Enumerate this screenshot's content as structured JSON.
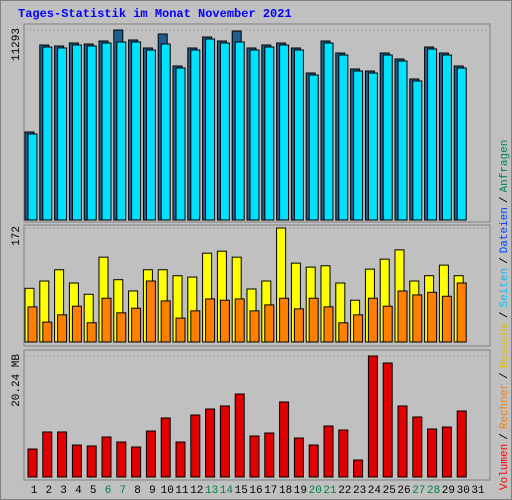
{
  "chart_data": {
    "type": "bar",
    "title": "Tages-Statistik im Monat November 2021",
    "categories": [
      "1",
      "2",
      "3",
      "4",
      "5",
      "6",
      "7",
      "8",
      "9",
      "10",
      "11",
      "12",
      "13",
      "14",
      "15",
      "16",
      "17",
      "18",
      "19",
      "20",
      "21",
      "22",
      "23",
      "24",
      "25",
      "26",
      "27",
      "28",
      "29",
      "30",
      "31"
    ],
    "category_colors": [
      "#000000",
      "#000000",
      "#000000",
      "#000000",
      "#000000",
      "#008040",
      "#008040",
      "#000000",
      "#000000",
      "#000000",
      "#000000",
      "#000000",
      "#008040",
      "#008040",
      "#000000",
      "#000000",
      "#000000",
      "#000000",
      "#000000",
      "#008040",
      "#008040",
      "#000000",
      "#000000",
      "#000000",
      "#000000",
      "#000000",
      "#008040",
      "#008040",
      "#000000",
      "#000000",
      "#000000"
    ],
    "legend_separator": "/",
    "legend": [
      {
        "label": "Volumen",
        "color": "#ff0000"
      },
      {
        "label": "Rechner",
        "color": "#ff8000"
      },
      {
        "label": "Besuche",
        "color": "#e0c000"
      },
      {
        "label": "Seiten",
        "color": "#00c0ff"
      },
      {
        "label": "Dateien",
        "color": "#0040ff"
      },
      {
        "label": "Anfragen",
        "color": "#008060"
      }
    ],
    "panels": [
      {
        "ylim": [
          0,
          11293
        ],
        "yticks": [
          11293
        ],
        "series": [
          {
            "name": "Anfragen",
            "color": "#1f5f8f",
            "values": [
              5231,
              10401,
              10342,
              10520,
              10461,
              10639,
              11293,
              10699,
              10223,
              11055,
              9153,
              10223,
              10877,
              10639,
              11233,
              10223,
              10401,
              10520,
              10223,
              8737,
              10639,
              9926,
              8975,
              8856,
              9926,
              9569,
              8381,
              10283,
              9926,
              9153,
              null
            ]
          },
          {
            "name": "Dateien",
            "color": "#00e0ff",
            "values": [
              5112,
              10282,
              10223,
              10401,
              10342,
              10520,
              10580,
              10580,
              10104,
              10461,
              9034,
              10104,
              10758,
              10520,
              10580,
              10104,
              10282,
              10401,
              10104,
              8618,
              10520,
              9807,
              8856,
              8737,
              9807,
              9450,
              8262,
              10164,
              9807,
              9034,
              null
            ]
          }
        ]
      },
      {
        "ylim": [
          0,
          172
        ],
        "yticks": [
          172
        ],
        "series": [
          {
            "name": "Besuche",
            "color": "#ffff00",
            "values": [
              81,
              92,
              109,
              89,
              72,
              128,
              94,
              77,
              109,
              109,
              100,
              98,
              134,
              137,
              128,
              80,
              92,
              172,
              119,
              113,
              115,
              89,
              63,
              110,
              125,
              139,
              92,
              100,
              116,
              100,
              null
            ]
          },
          {
            "name": "Rechner",
            "color": "#ff8000",
            "values": [
              53,
              30,
              41,
              54,
              29,
              66,
              44,
              51,
              92,
              62,
              36,
              47,
              65,
              63,
              65,
              47,
              56,
              66,
              50,
              66,
              53,
              29,
              41,
              66,
              54,
              77,
              71,
              75,
              69,
              89,
              null
            ]
          }
        ]
      },
      {
        "ylim": [
          0,
          20.24
        ],
        "yticks": [
          {
            "value": 20.24,
            "label": "20.24 MB"
          }
        ],
        "series": [
          {
            "name": "Volumen",
            "color": "#e00000",
            "values": [
              4.68,
              7.53,
              7.53,
              5.35,
              5.19,
              6.69,
              5.85,
              5.02,
              7.69,
              9.87,
              5.85,
              10.37,
              11.37,
              11.88,
              13.88,
              6.86,
              7.36,
              12.55,
              6.52,
              5.35,
              8.53,
              7.86,
              2.84,
              20.24,
              19.07,
              11.88,
              10.04,
              8.03,
              8.36,
              11.04,
              null
            ]
          }
        ]
      }
    ]
  }
}
